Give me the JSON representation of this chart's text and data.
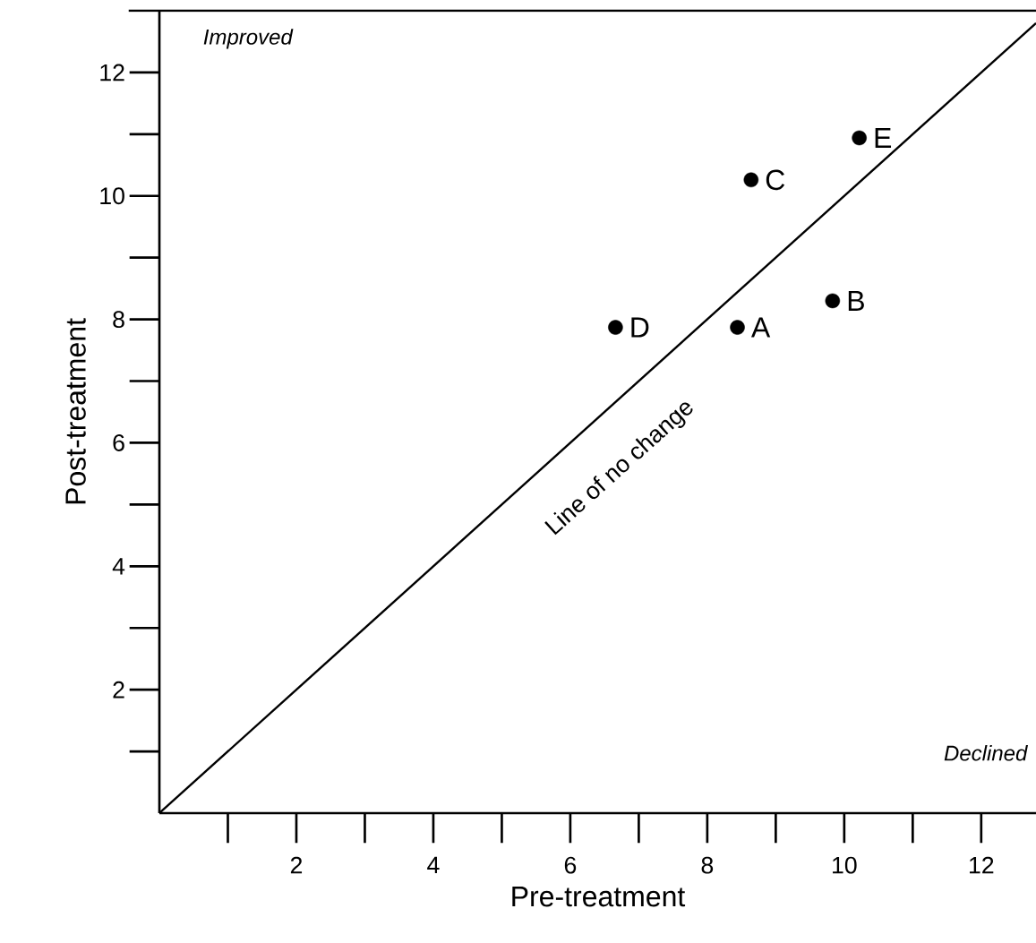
{
  "chart_data": {
    "type": "scatter",
    "xlabel": "Pre-treatment",
    "ylabel": "Post-treatment",
    "xlim": [
      0,
      12.8
    ],
    "ylim": [
      0,
      13
    ],
    "xticks": [
      2,
      4,
      6,
      8,
      10,
      12
    ],
    "yticks": [
      2,
      4,
      6,
      8,
      10,
      12
    ],
    "marker": "circle",
    "legend": false,
    "grid": false,
    "annotations": [
      "Improved",
      "Declined",
      "Line of no change"
    ],
    "series": [
      {
        "type": "line",
        "color": "#000000",
        "marker": "none",
        "x": [
          0,
          12.8
        ],
        "values": [
          0,
          12.8
        ]
      },
      {
        "name": "A",
        "color": "#000000",
        "x": [
          8.44
        ],
        "values": [
          7.87
        ]
      },
      {
        "name": "B",
        "color": "#000000",
        "x": [
          9.83
        ],
        "values": [
          8.3
        ]
      },
      {
        "name": "C",
        "color": "#000000",
        "x": [
          8.64
        ],
        "values": [
          10.26
        ]
      },
      {
        "name": "D",
        "color": "#000000",
        "x": [
          6.66
        ],
        "values": [
          7.87
        ]
      },
      {
        "name": "E",
        "color": "#000000",
        "x": [
          10.22
        ],
        "values": [
          10.94
        ]
      }
    ]
  }
}
